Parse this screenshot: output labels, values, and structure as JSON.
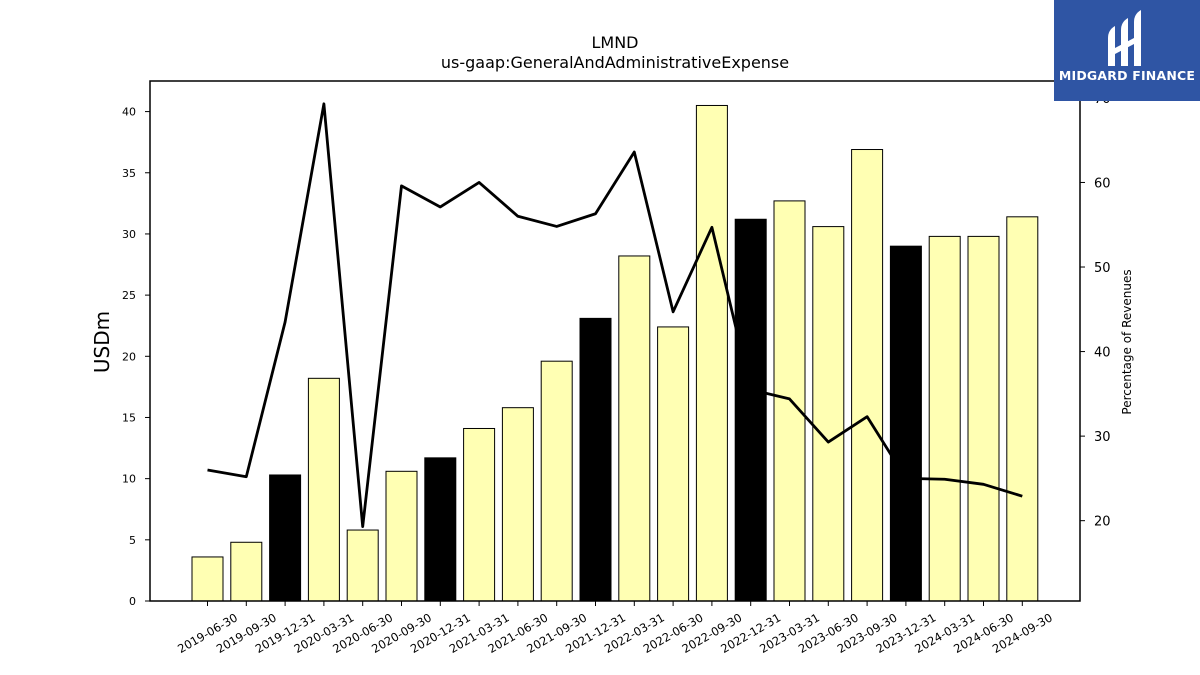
{
  "chart_data": {
    "type": "bar",
    "title": "LMND",
    "subtitle": "us-gaap:GeneralAndAdministrativeExpense",
    "ylabel": "USDm",
    "y2label": "Percentage of Revenues",
    "ylim": [
      0,
      42.5
    ],
    "y2lim": [
      10.5,
      72
    ],
    "yticks": [
      0,
      5,
      10,
      15,
      20,
      25,
      30,
      35,
      40
    ],
    "y2ticks": [
      20,
      30,
      40,
      50,
      60,
      70
    ],
    "categories": [
      "2019-06-30",
      "2019-09-30",
      "2019-12-31",
      "2020-03-31",
      "2020-06-30",
      "2020-09-30",
      "2020-12-31",
      "2021-03-31",
      "2021-06-30",
      "2021-09-30",
      "2021-12-31",
      "2022-03-31",
      "2022-06-30",
      "2022-09-30",
      "2022-12-31",
      "2023-03-31",
      "2023-06-30",
      "2023-09-30",
      "2023-12-31",
      "2024-03-31",
      "2024-06-30",
      "2024-09-30"
    ],
    "series": [
      {
        "type": "bar",
        "axis": "left",
        "values": [
          3.6,
          4.8,
          10.3,
          18.2,
          5.8,
          10.6,
          11.7,
          14.1,
          15.8,
          19.6,
          23.1,
          28.2,
          22.4,
          40.5,
          31.2,
          32.7,
          30.6,
          36.9,
          29.0,
          29.8,
          29.8,
          31.4
        ],
        "colors": [
          "#ffffb3",
          "#ffffb3",
          "#000000",
          "#ffffb3",
          "#ffffb3",
          "#ffffb3",
          "#000000",
          "#ffffb3",
          "#ffffb3",
          "#ffffb3",
          "#000000",
          "#ffffb3",
          "#ffffb3",
          "#ffffb3",
          "#000000",
          "#ffffb3",
          "#ffffb3",
          "#ffffb3",
          "#000000",
          "#ffffb3",
          "#ffffb3",
          "#ffffb3"
        ]
      },
      {
        "type": "line",
        "axis": "right",
        "color": "#000000",
        "values": [
          26.0,
          25.2,
          43.5,
          69.3,
          19.3,
          59.6,
          57.1,
          60.0,
          56.0,
          54.8,
          56.3,
          63.6,
          44.7,
          54.7,
          35.5,
          34.4,
          29.3,
          32.3,
          25.0,
          24.9,
          24.3,
          22.9
        ]
      }
    ]
  },
  "logo": {
    "text": "MIDGARD FINANCE"
  }
}
